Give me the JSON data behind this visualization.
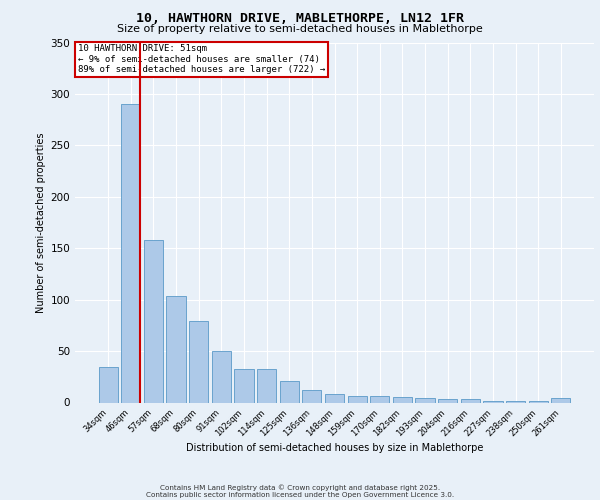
{
  "title_line1": "10, HAWTHORN DRIVE, MABLETHORPE, LN12 1FR",
  "title_line2": "Size of property relative to semi-detached houses in Mablethorpe",
  "categories": [
    "34sqm",
    "46sqm",
    "57sqm",
    "68sqm",
    "80sqm",
    "91sqm",
    "102sqm",
    "114sqm",
    "125sqm",
    "136sqm",
    "148sqm",
    "159sqm",
    "170sqm",
    "182sqm",
    "193sqm",
    "204sqm",
    "216sqm",
    "227sqm",
    "238sqm",
    "250sqm",
    "261sqm"
  ],
  "values": [
    35,
    290,
    158,
    104,
    79,
    50,
    33,
    33,
    21,
    12,
    8,
    6,
    6,
    5,
    4,
    3,
    3,
    1,
    1,
    1,
    4
  ],
  "bar_color": "#adc9e8",
  "bar_edge_color": "#5a9ac8",
  "property_bin_index": 1,
  "property_label": "10 HAWTHORN DRIVE: 51sqm",
  "smaller_text": "← 9% of semi-detached houses are smaller (74)",
  "larger_text": "89% of semi-detached houses are larger (722) →",
  "annotation_box_color": "#ffffff",
  "annotation_box_edge": "#cc0000",
  "vline_color": "#cc0000",
  "xlabel": "Distribution of semi-detached houses by size in Mablethorpe",
  "ylabel": "Number of semi-detached properties",
  "ylim": [
    0,
    350
  ],
  "yticks": [
    0,
    50,
    100,
    150,
    200,
    250,
    300,
    350
  ],
  "bg_color": "#e8f0f8",
  "plot_bg": "#e8f0f8",
  "grid_color": "#ffffff",
  "footer1": "Contains HM Land Registry data © Crown copyright and database right 2025.",
  "footer2": "Contains public sector information licensed under the Open Government Licence 3.0."
}
